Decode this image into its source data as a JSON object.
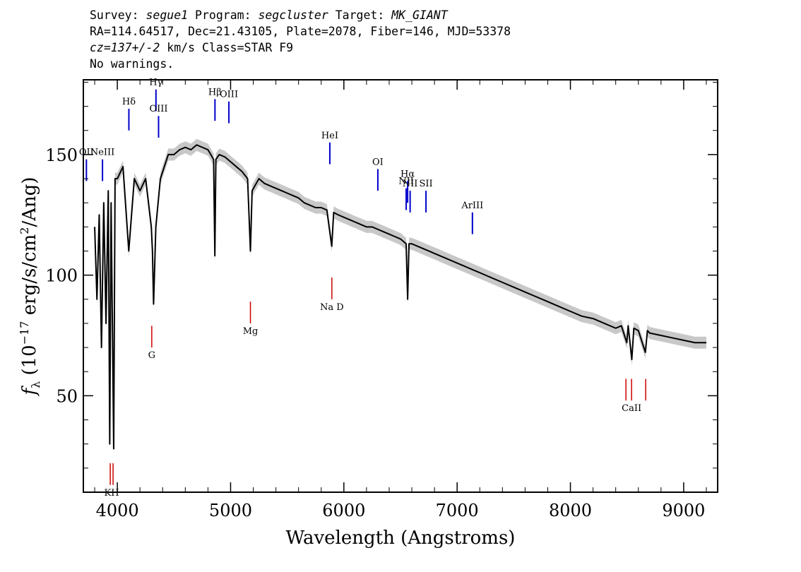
{
  "header": {
    "survey_label": "Survey: ",
    "survey": "segue1",
    "program_label": " Program: ",
    "program": "segcluster",
    "target_label": " Target: ",
    "target": "MK_GIANT",
    "line2": "RA=114.64517, Dec=21.43105, Plate=2078, Fiber=146, MJD=53378",
    "cz_label": "cz=137+/-2",
    "cz_rest": " km/s Class=STAR F9",
    "line4": "No warnings."
  },
  "chart_data": {
    "type": "line",
    "title": "",
    "xlabel": "Wavelength (Angstroms)",
    "ylabel": "f_λ (10^-17 erg/s/cm^2/Ang)",
    "ylabel_parts": {
      "f": "f",
      "sub": "λ",
      "pre": " (10",
      "exp1": "−17",
      "mid": " erg/s/cm",
      "exp2": "2",
      "post": "/Ang)"
    },
    "xlim": [
      3700,
      9300
    ],
    "ylim": [
      10,
      181
    ],
    "xticks": [
      4000,
      5000,
      6000,
      7000,
      8000,
      9000
    ],
    "yticks": [
      50,
      100,
      150
    ],
    "grid": false,
    "colors": {
      "flux": "#000000",
      "error_band": "#c8c8c8",
      "emission": "#0000cc",
      "absorption": "#cc0000"
    },
    "series": [
      {
        "x": [
          3800,
          3820,
          3840,
          3860,
          3880,
          3900,
          3920,
          3933,
          3945,
          3968,
          3980,
          4000,
          4050,
          4101,
          4150,
          4200,
          4250,
          4300,
          4310,
          4320,
          4340,
          4380,
          4450,
          4500,
          4550,
          4600,
          4650,
          4700,
          4750,
          4800,
          4850,
          4861,
          4870,
          4900,
          4950,
          5000,
          5050,
          5100,
          5150,
          5175,
          5190,
          5250,
          5300,
          5350,
          5400,
          5450,
          5500,
          5550,
          5600,
          5650,
          5700,
          5750,
          5800,
          5850,
          5893,
          5910,
          5950,
          6000,
          6050,
          6100,
          6150,
          6200,
          6250,
          6300,
          6350,
          6400,
          6450,
          6500,
          6550,
          6563,
          6575,
          6600,
          6650,
          6700,
          6750,
          6800,
          6850,
          6900,
          6950,
          7000,
          7050,
          7100,
          7150,
          7200,
          7250,
          7300,
          7400,
          7500,
          7600,
          7700,
          7800,
          7900,
          8000,
          8100,
          8200,
          8300,
          8400,
          8450,
          8498,
          8510,
          8542,
          8560,
          8600,
          8662,
          8680,
          8700,
          8800,
          8900,
          9000,
          9100,
          9200
        ],
        "y": [
          120,
          90,
          125,
          70,
          130,
          80,
          135,
          30,
          130,
          28,
          140,
          140,
          145,
          110,
          140,
          135,
          140,
          120,
          110,
          88,
          120,
          140,
          150,
          150,
          152,
          153,
          152,
          154,
          153,
          152,
          148,
          108,
          148,
          150,
          149,
          147,
          145,
          143,
          140,
          110,
          135,
          140,
          138,
          137,
          136,
          135,
          134,
          133,
          132,
          130,
          129,
          128,
          128,
          127,
          112,
          126,
          125,
          124,
          123,
          122,
          121,
          120,
          120,
          119,
          118,
          117,
          116,
          115,
          113,
          90,
          113,
          113,
          112,
          111,
          110,
          109,
          108,
          107,
          106,
          105,
          104,
          103,
          102,
          101,
          100,
          99,
          97,
          95,
          93,
          91,
          89,
          87,
          85,
          83,
          82,
          80,
          78,
          79,
          72,
          79,
          65,
          78,
          77,
          68,
          77,
          76,
          75,
          74,
          73,
          72,
          72
        ],
        "err": 2.5
      }
    ],
    "annotations": [
      {
        "label": "KH",
        "x": 3950,
        "kind": "absorption",
        "y_top": 22,
        "y_bottom": 13
      },
      {
        "label": "G",
        "x": 4304,
        "kind": "absorption",
        "y_top": 79,
        "y_bottom": 70
      },
      {
        "label": "Mg",
        "x": 5175,
        "kind": "absorption",
        "y_top": 89,
        "y_bottom": 80
      },
      {
        "label": "Na D",
        "x": 5894,
        "kind": "absorption",
        "y_top": 99,
        "y_bottom": 90
      },
      {
        "label": "CaII",
        "x": 8540,
        "kind": "absorption",
        "y_top": 57,
        "y_bottom": 48
      },
      {
        "label": "Hδ",
        "x": 4102,
        "kind": "emission",
        "y_top": 169,
        "y_bottom": 160
      },
      {
        "label": "Hγ",
        "x": 4341,
        "kind": "emission",
        "y_top": 177,
        "y_bottom": 168
      },
      {
        "label": "OIII",
        "x": 4364,
        "kind": "emission",
        "y_top": 166,
        "y_bottom": 157
      },
      {
        "label": "Hβ",
        "x": 4862,
        "kind": "emission",
        "y_top": 173,
        "y_bottom": 164
      },
      {
        "label": "OIII",
        "x": 4985,
        "kind": "emission",
        "y_top": 172,
        "y_bottom": 163
      },
      {
        "label": "NeIII",
        "x": 3869,
        "kind": "emission",
        "y_top": 148,
        "y_bottom": 139
      },
      {
        "label": "OII",
        "x": 3727,
        "kind": "emission",
        "y_top": 148,
        "y_bottom": 139
      },
      {
        "label": "HeI",
        "x": 5876,
        "kind": "emission",
        "y_top": 155,
        "y_bottom": 146
      },
      {
        "label": "OI",
        "x": 6300,
        "kind": "emission",
        "y_top": 144,
        "y_bottom": 135
      },
      {
        "label": "NII",
        "x": 6550,
        "kind": "emission",
        "y_top": 136,
        "y_bottom": 127
      },
      {
        "label": "Hα",
        "x": 6563,
        "kind": "emission",
        "y_top": 139,
        "y_bottom": 130
      },
      {
        "label": "NII",
        "x": 6585,
        "kind": "emission",
        "y_top": 135,
        "y_bottom": 126
      },
      {
        "label": "SII",
        "x": 6725,
        "kind": "emission",
        "y_top": 135,
        "y_bottom": 126
      },
      {
        "label": "ArIII",
        "x": 7135,
        "kind": "emission",
        "y_top": 126,
        "y_bottom": 117
      }
    ]
  }
}
